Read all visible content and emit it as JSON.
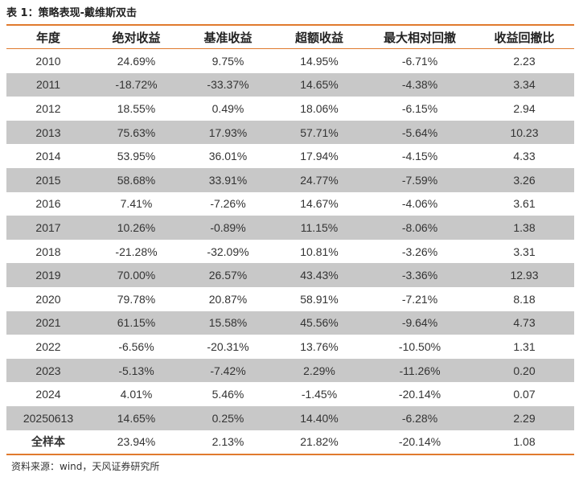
{
  "caption": "表 1：策略表现-戴维斯双击",
  "headers": [
    "年度",
    "绝对收益",
    "基准收益",
    "超额收益",
    "最大相对回撤",
    "收益回撤比"
  ],
  "rows": [
    [
      "2010",
      "24.69%",
      "9.75%",
      "14.95%",
      "-6.71%",
      "2.23"
    ],
    [
      "2011",
      "-18.72%",
      "-33.37%",
      "14.65%",
      "-4.38%",
      "3.34"
    ],
    [
      "2012",
      "18.55%",
      "0.49%",
      "18.06%",
      "-6.15%",
      "2.94"
    ],
    [
      "2013",
      "75.63%",
      "17.93%",
      "57.71%",
      "-5.64%",
      "10.23"
    ],
    [
      "2014",
      "53.95%",
      "36.01%",
      "17.94%",
      "-4.15%",
      "4.33"
    ],
    [
      "2015",
      "58.68%",
      "33.91%",
      "24.77%",
      "-7.59%",
      "3.26"
    ],
    [
      "2016",
      "7.41%",
      "-7.26%",
      "14.67%",
      "-4.06%",
      "3.61"
    ],
    [
      "2017",
      "10.26%",
      "-0.89%",
      "11.15%",
      "-8.06%",
      "1.38"
    ],
    [
      "2018",
      "-21.28%",
      "-32.09%",
      "10.81%",
      "-3.26%",
      "3.31"
    ],
    [
      "2019",
      "70.00%",
      "26.57%",
      "43.43%",
      "-3.36%",
      "12.93"
    ],
    [
      "2020",
      "79.78%",
      "20.87%",
      "58.91%",
      "-7.21%",
      "8.18"
    ],
    [
      "2021",
      "61.15%",
      "15.58%",
      "45.56%",
      "-9.64%",
      "4.73"
    ],
    [
      "2022",
      "-6.56%",
      "-20.31%",
      "13.76%",
      "-10.50%",
      "1.31"
    ],
    [
      "2023",
      "-5.13%",
      "-7.42%",
      "2.29%",
      "-11.26%",
      "0.20"
    ],
    [
      "2024",
      "4.01%",
      "5.46%",
      "-1.45%",
      "-20.14%",
      "0.07"
    ],
    [
      "20250613",
      "14.65%",
      "0.25%",
      "14.40%",
      "-6.28%",
      "2.29"
    ],
    [
      "全样本",
      "23.94%",
      "2.13%",
      "21.82%",
      "-20.14%",
      "1.08"
    ]
  ],
  "source": "资料来源：wind，天风证券研究所",
  "colors": {
    "accent_rule": "#e07a2e",
    "stripe": "#c8c8c8"
  }
}
